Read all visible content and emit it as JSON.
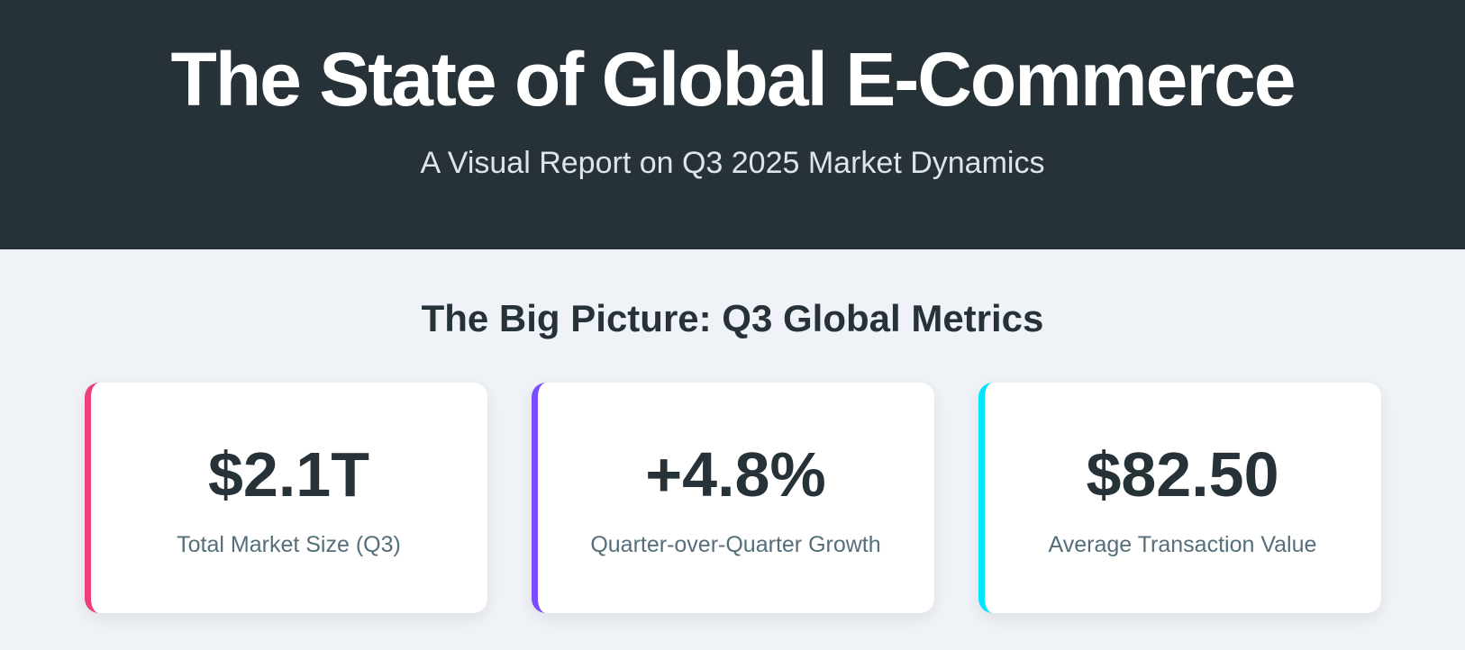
{
  "header": {
    "title": "The State of Global E-Commerce",
    "subtitle": "A Visual Report on Q3 2025 Market Dynamics"
  },
  "section": {
    "title": "The Big Picture: Q3 Global Metrics",
    "cards": [
      {
        "value": "$2.1T",
        "label": "Total Market Size (Q3)",
        "color": "#ec407a"
      },
      {
        "value": "+4.8%",
        "label": "Quarter-over-Quarter Growth",
        "color": "#7c4dff"
      },
      {
        "value": "$82.50",
        "label": "Average Transaction Value",
        "color": "#00e5ff"
      }
    ]
  }
}
